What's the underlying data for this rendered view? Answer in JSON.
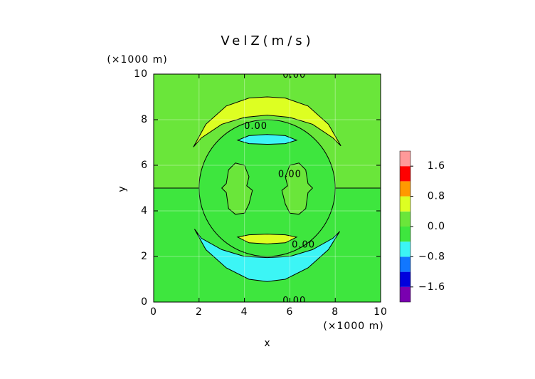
{
  "chart_data": {
    "type": "contour",
    "title": "VelZ(m/s)",
    "x_label": "x",
    "y_label": "y",
    "x_unit": "(×1000 m)",
    "y_unit": "(×1000 m)",
    "xlim": [
      0,
      10
    ],
    "ylim": [
      0,
      10
    ],
    "xticks": [
      0,
      2,
      4,
      6,
      8,
      10
    ],
    "yticks": [
      0,
      2,
      4,
      6,
      8,
      10
    ],
    "grid": true,
    "colorbar": {
      "levels": [
        -2.0,
        -1.6,
        -1.2,
        -0.8,
        -0.4,
        0.0,
        0.4,
        0.8,
        1.2,
        1.6,
        2.0
      ],
      "colors": [
        "#7a00b0",
        "#0000dd",
        "#1177ff",
        "#3cf5f5",
        "#3ee63e",
        "#6ae63a",
        "#ddff22",
        "#ff9900",
        "#ff0000",
        "#ff9999"
      ],
      "ticks": [
        {
          "value": 1.6,
          "label": "1.6"
        },
        {
          "value": 0.8,
          "label": "0.8"
        },
        {
          "value": 0.0,
          "label": "0.0"
        },
        {
          "value": -0.8,
          "label": "−0.8"
        },
        {
          "value": -1.6,
          "label": "−1.6"
        }
      ]
    },
    "regions": [
      {
        "value": -0.2,
        "points": [
          [
            0,
            0
          ],
          [
            10,
            0
          ],
          [
            10,
            10
          ],
          [
            0,
            10
          ]
        ]
      },
      {
        "value": 0.2,
        "points": [
          [
            0,
            5
          ],
          [
            10,
            5
          ],
          [
            10,
            10
          ],
          [
            0,
            10
          ]
        ]
      },
      {
        "value": -0.2,
        "center": [
          5,
          5
        ],
        "radius": 3
      },
      {
        "value": 0.2,
        "points": [
          [
            3.3,
            5.8
          ],
          [
            3.6,
            6.1
          ],
          [
            4.0,
            6.0
          ],
          [
            4.2,
            5.5
          ],
          [
            4.1,
            5.1
          ],
          [
            4.35,
            4.9
          ],
          [
            4.2,
            4.3
          ],
          [
            4.0,
            3.9
          ],
          [
            3.6,
            3.85
          ],
          [
            3.3,
            4.1
          ],
          [
            3.2,
            4.8
          ],
          [
            3.0,
            5.0
          ],
          [
            3.2,
            5.2
          ]
        ]
      },
      {
        "value": 0.2,
        "points": [
          [
            6.7,
            5.8
          ],
          [
            6.4,
            6.1
          ],
          [
            6.0,
            6.0
          ],
          [
            5.8,
            5.5
          ],
          [
            5.9,
            5.1
          ],
          [
            5.65,
            4.9
          ],
          [
            5.8,
            4.3
          ],
          [
            6.0,
            3.9
          ],
          [
            6.4,
            3.85
          ],
          [
            6.7,
            4.1
          ],
          [
            6.8,
            4.8
          ],
          [
            7.0,
            5.0
          ],
          [
            6.8,
            5.2
          ]
        ]
      },
      {
        "value": 0.6,
        "points": [
          [
            1.75,
            6.8
          ],
          [
            2.3,
            7.8
          ],
          [
            3.2,
            8.6
          ],
          [
            4.2,
            8.95
          ],
          [
            5.0,
            9.0
          ],
          [
            5.8,
            8.95
          ],
          [
            6.8,
            8.6
          ],
          [
            7.7,
            7.8
          ],
          [
            8.25,
            6.85
          ],
          [
            7.9,
            7.2
          ],
          [
            7.0,
            7.8
          ],
          [
            6.0,
            8.1
          ],
          [
            5.0,
            8.2
          ],
          [
            4.0,
            8.1
          ],
          [
            3.0,
            7.8
          ],
          [
            2.1,
            7.2
          ]
        ]
      },
      {
        "value": -0.6,
        "points": [
          [
            1.8,
            3.2
          ],
          [
            2.3,
            2.3
          ],
          [
            3.2,
            1.5
          ],
          [
            4.2,
            1.0
          ],
          [
            5.0,
            0.9
          ],
          [
            5.8,
            1.0
          ],
          [
            6.8,
            1.5
          ],
          [
            7.7,
            2.3
          ],
          [
            8.2,
            3.1
          ],
          [
            7.9,
            2.8
          ],
          [
            7.0,
            2.3
          ],
          [
            6.0,
            2.0
          ],
          [
            5.0,
            1.95
          ],
          [
            4.0,
            2.0
          ],
          [
            3.0,
            2.3
          ],
          [
            2.1,
            2.8
          ]
        ]
      },
      {
        "value": -0.6,
        "points": [
          [
            3.7,
            7.1
          ],
          [
            4.2,
            7.3
          ],
          [
            5.0,
            7.35
          ],
          [
            5.8,
            7.3
          ],
          [
            6.3,
            7.1
          ],
          [
            5.8,
            6.95
          ],
          [
            5.0,
            6.92
          ],
          [
            4.2,
            6.95
          ]
        ]
      },
      {
        "value": 0.6,
        "points": [
          [
            3.7,
            2.85
          ],
          [
            4.2,
            2.95
          ],
          [
            5.0,
            2.98
          ],
          [
            5.8,
            2.95
          ],
          [
            6.3,
            2.85
          ],
          [
            5.8,
            2.6
          ],
          [
            5.0,
            2.55
          ],
          [
            4.2,
            2.6
          ]
        ]
      }
    ],
    "contour_lines": [
      [
        [
          0,
          5
        ],
        [
          2,
          5
        ]
      ],
      [
        [
          8,
          5
        ],
        [
          10,
          5
        ]
      ]
    ],
    "contour_labels": [
      {
        "text": "0.00",
        "x": 4.5,
        "y": 7.7
      },
      {
        "text": "0.00",
        "x": 6.0,
        "y": 5.6
      },
      {
        "text": "0.00",
        "x": 6.6,
        "y": 2.5
      },
      {
        "text": "0.00",
        "x": 6.2,
        "y": 9.95
      },
      {
        "text": "0.00",
        "x": 6.2,
        "y": 0.05
      }
    ]
  }
}
